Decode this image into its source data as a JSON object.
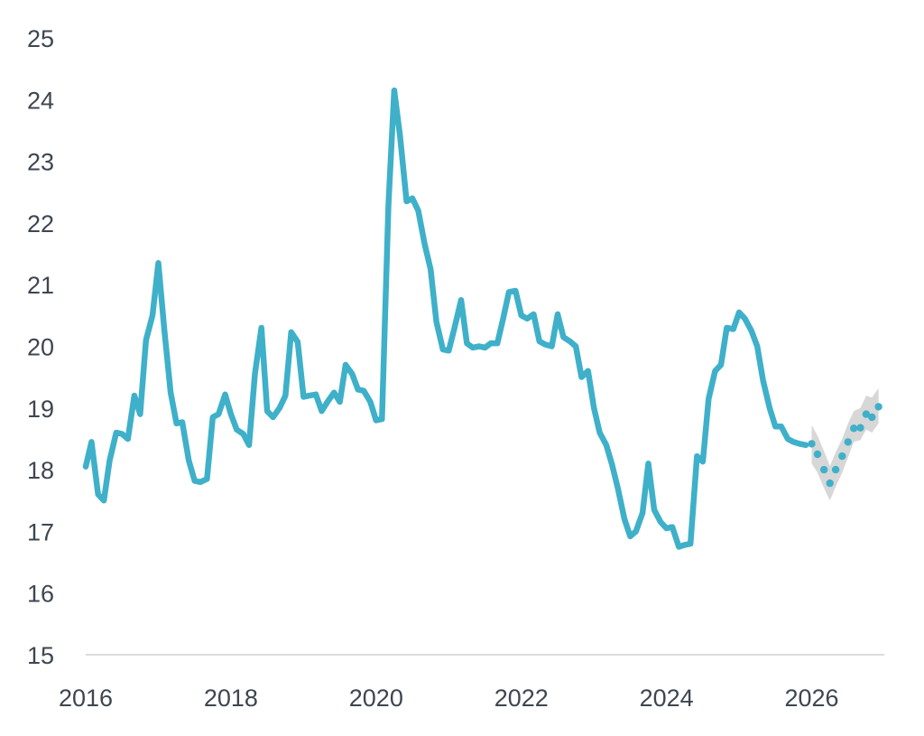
{
  "chart_data": {
    "type": "line",
    "title": "",
    "xlabel": "",
    "ylabel": "",
    "xlim": [
      2016,
      2027
    ],
    "ylim": [
      15,
      25
    ],
    "x_ticks": [
      2016,
      2018,
      2020,
      2022,
      2024,
      2026
    ],
    "y_ticks": [
      15,
      16,
      17,
      18,
      19,
      20,
      21,
      22,
      23,
      24,
      25
    ],
    "grid": false,
    "legend": "none",
    "colors": {
      "line": "#3fb0c9",
      "band": "#d3d3d3",
      "axis": "#cfcfcf",
      "text": "#3d4650"
    },
    "series": [
      {
        "style": "solid-line",
        "x": [
          2016.0,
          2016.08,
          2016.17,
          2016.25,
          2016.33,
          2016.42,
          2016.5,
          2016.58,
          2016.67,
          2016.75,
          2016.83,
          2016.92,
          2017.0,
          2017.08,
          2017.17,
          2017.25,
          2017.33,
          2017.42,
          2017.5,
          2017.58,
          2017.67,
          2017.75,
          2017.83,
          2017.92,
          2018.0,
          2018.08,
          2018.17,
          2018.25,
          2018.33,
          2018.42,
          2018.5,
          2018.58,
          2018.67,
          2018.75,
          2018.83,
          2018.92,
          2019.0,
          2019.08,
          2019.17,
          2019.25,
          2019.33,
          2019.42,
          2019.5,
          2019.58,
          2019.67,
          2019.75,
          2019.83,
          2019.92,
          2020.0,
          2020.08,
          2020.17,
          2020.25,
          2020.33,
          2020.42,
          2020.5,
          2020.58,
          2020.67,
          2020.75,
          2020.83,
          2020.92,
          2021.0,
          2021.08,
          2021.17,
          2021.25,
          2021.33,
          2021.42,
          2021.5,
          2021.58,
          2021.67,
          2021.75,
          2021.83,
          2021.92,
          2022.0,
          2022.08,
          2022.17,
          2022.25,
          2022.33,
          2022.42,
          2022.5,
          2022.58,
          2022.67,
          2022.75,
          2022.83,
          2022.92,
          2023.0,
          2023.08,
          2023.17,
          2023.25,
          2023.33,
          2023.42,
          2023.5,
          2023.58,
          2023.67,
          2023.75,
          2023.83,
          2023.92,
          2024.0,
          2024.08,
          2024.17,
          2024.25,
          2024.33,
          2024.42,
          2024.5,
          2024.58,
          2024.67,
          2024.75,
          2024.83,
          2024.92,
          2025.0,
          2025.08,
          2025.17,
          2025.25,
          2025.33,
          2025.42,
          2025.5,
          2025.58,
          2025.67,
          2025.75,
          2025.83,
          2025.92
        ],
        "y": [
          18.05,
          18.45,
          17.6,
          17.5,
          18.15,
          18.6,
          18.58,
          18.5,
          19.2,
          18.9,
          20.1,
          20.5,
          21.35,
          20.3,
          19.25,
          18.75,
          18.77,
          18.15,
          17.82,
          17.8,
          17.85,
          18.85,
          18.9,
          19.22,
          18.9,
          18.65,
          18.58,
          18.4,
          19.55,
          20.3,
          18.95,
          18.85,
          19.0,
          19.2,
          20.23,
          20.07,
          19.18,
          19.2,
          19.22,
          18.95,
          19.1,
          19.25,
          19.1,
          19.7,
          19.55,
          19.3,
          19.28,
          19.1,
          18.8,
          18.82,
          22.3,
          24.15,
          23.4,
          22.35,
          22.4,
          22.2,
          21.65,
          21.25,
          20.4,
          19.95,
          19.93,
          20.3,
          20.75,
          20.05,
          19.98,
          20.0,
          19.98,
          20.05,
          20.05,
          20.45,
          20.88,
          20.9,
          20.5,
          20.45,
          20.52,
          20.08,
          20.03,
          20.0,
          20.52,
          20.15,
          20.08,
          20.0,
          19.5,
          19.6,
          19.0,
          18.6,
          18.4,
          18.08,
          17.7,
          17.2,
          16.92,
          17.0,
          17.3,
          18.1,
          17.35,
          17.15,
          17.05,
          17.07,
          16.75,
          16.78,
          16.8,
          18.22,
          18.13,
          19.15,
          19.6,
          19.7,
          20.3,
          20.28,
          20.55,
          20.45,
          20.25,
          20.0,
          19.45,
          19.0,
          18.7,
          18.7,
          18.5,
          18.45,
          18.42,
          18.4
        ]
      },
      {
        "style": "dots-with-band",
        "x": [
          2026.0,
          2026.08,
          2026.17,
          2026.25,
          2026.33,
          2026.42,
          2026.5,
          2026.58,
          2026.67,
          2026.75,
          2026.83,
          2026.92
        ],
        "y": [
          18.42,
          18.25,
          18.0,
          17.78,
          18.0,
          18.22,
          18.45,
          18.67,
          18.68,
          18.9,
          18.85,
          19.02
        ],
        "band_lower": [
          18.1,
          17.95,
          17.7,
          17.5,
          17.72,
          17.95,
          18.2,
          18.45,
          18.48,
          18.65,
          18.6,
          18.75
        ],
        "band_upper": [
          18.72,
          18.55,
          18.3,
          18.06,
          18.28,
          18.5,
          18.75,
          18.95,
          19.0,
          19.2,
          19.17,
          19.32
        ]
      }
    ]
  }
}
